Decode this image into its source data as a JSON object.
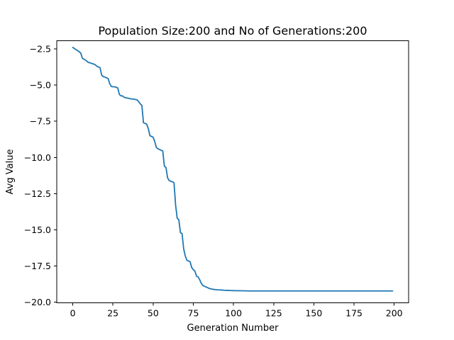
{
  "chart_data": {
    "type": "line",
    "title": "Population Size:200 and No of Generations:200",
    "xlabel": "Generation Number",
    "ylabel": "Avg Value",
    "xlim": [
      -9.95,
      208.95
    ],
    "ylim": [
      -20.04,
      -1.94
    ],
    "xticks": [
      0,
      25,
      50,
      75,
      100,
      125,
      150,
      175,
      200
    ],
    "xtick_labels": [
      "0",
      "25",
      "50",
      "75",
      "100",
      "125",
      "150",
      "175",
      "200"
    ],
    "yticks": [
      -2.5,
      -5.0,
      -7.5,
      -10.0,
      -12.5,
      -15.0,
      -17.5,
      -20.0
    ],
    "ytick_labels": [
      "−2.5",
      "−5.0",
      "−7.5",
      "−10.0",
      "−12.5",
      "−15.0",
      "−17.5",
      "−20.0"
    ],
    "grid": false,
    "series": [
      {
        "color": "#1f77b4",
        "x": [
          0,
          1,
          2,
          3,
          4,
          5,
          6,
          7,
          8,
          9,
          10,
          11,
          12,
          13,
          14,
          15,
          16,
          17,
          18,
          19,
          20,
          21,
          22,
          23,
          24,
          25,
          26,
          27,
          28,
          29,
          30,
          31,
          32,
          33,
          34,
          35,
          36,
          37,
          38,
          39,
          40,
          41,
          42,
          43,
          44,
          45,
          46,
          47,
          48,
          49,
          50,
          51,
          52,
          53,
          54,
          55,
          56,
          57,
          58,
          59,
          60,
          61,
          62,
          63,
          64,
          65,
          66,
          67,
          68,
          69,
          70,
          71,
          72,
          73,
          74,
          75,
          76,
          77,
          78,
          79,
          80,
          81,
          82,
          83,
          84,
          85,
          86,
          87,
          88,
          89,
          90,
          92,
          94,
          96,
          98,
          100,
          105,
          110,
          115,
          120,
          130,
          140,
          150,
          160,
          170,
          180,
          190,
          199
        ],
        "y": [
          -2.4,
          -2.48,
          -2.55,
          -2.62,
          -2.7,
          -2.8,
          -3.15,
          -3.22,
          -3.28,
          -3.38,
          -3.45,
          -3.47,
          -3.52,
          -3.55,
          -3.6,
          -3.7,
          -3.76,
          -3.8,
          -4.32,
          -4.42,
          -4.45,
          -4.5,
          -4.55,
          -4.9,
          -5.1,
          -5.12,
          -5.12,
          -5.15,
          -5.2,
          -5.65,
          -5.75,
          -5.75,
          -5.85,
          -5.88,
          -5.9,
          -5.92,
          -5.95,
          -5.97,
          -5.97,
          -6.0,
          -6.02,
          -6.15,
          -6.3,
          -6.4,
          -7.6,
          -7.65,
          -7.7,
          -8.0,
          -8.5,
          -8.55,
          -8.6,
          -8.9,
          -9.3,
          -9.4,
          -9.45,
          -9.5,
          -9.55,
          -10.6,
          -10.7,
          -11.4,
          -11.6,
          -11.65,
          -11.68,
          -11.75,
          -13.3,
          -14.2,
          -14.3,
          -15.2,
          -15.25,
          -16.3,
          -16.8,
          -17.1,
          -17.15,
          -17.2,
          -17.6,
          -17.75,
          -17.85,
          -18.2,
          -18.25,
          -18.45,
          -18.7,
          -18.85,
          -18.9,
          -18.95,
          -19.0,
          -19.05,
          -19.08,
          -19.1,
          -19.12,
          -19.13,
          -19.14,
          -19.15,
          -19.17,
          -19.18,
          -19.19,
          -19.2,
          -19.21,
          -19.22,
          -19.22,
          -19.22,
          -19.22,
          -19.22,
          -19.22,
          -19.22,
          -19.22,
          -19.22,
          -19.22,
          -19.22
        ]
      }
    ]
  }
}
